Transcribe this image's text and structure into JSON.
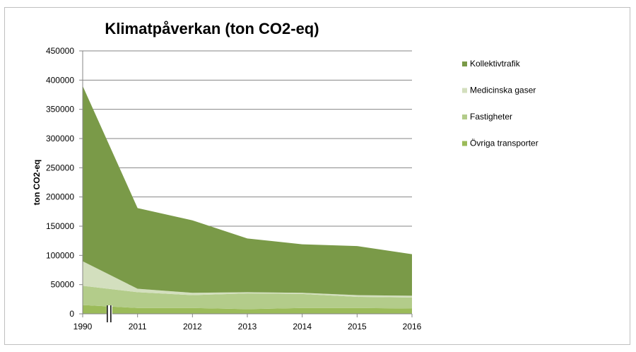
{
  "chart_data": {
    "type": "area",
    "stacked": true,
    "title": "Klimatpåverkan (ton CO2-eq)",
    "xlabel": "",
    "ylabel": "ton CO2-eq",
    "categories": [
      "1990",
      "2011",
      "2012",
      "2013",
      "2014",
      "2015",
      "2016"
    ],
    "ylim": [
      0,
      450000
    ],
    "yticks": [
      "0",
      "50000",
      "100000",
      "150000",
      "200000",
      "250000",
      "300000",
      "350000",
      "400000",
      "450000"
    ],
    "grid": true,
    "legend_position": "right",
    "axis_break": true,
    "series": [
      {
        "name": "Övriga transporter",
        "color": "#9bbb59",
        "values": [
          15000,
          10000,
          10000,
          8000,
          10000,
          10000,
          9000
        ]
      },
      {
        "name": "Fastigheter",
        "color": "#b3cc8a",
        "values": [
          33000,
          27000,
          22000,
          27000,
          24000,
          19000,
          19000
        ]
      },
      {
        "name": "Medicinska gaser",
        "color": "#d3dfbe",
        "values": [
          42000,
          6000,
          4000,
          2000,
          2000,
          3000,
          3000
        ]
      },
      {
        "name": "Kollektivtrafik",
        "color": "#7a9a48",
        "values": [
          300000,
          138000,
          124000,
          92000,
          83000,
          84000,
          71000
        ]
      }
    ]
  }
}
